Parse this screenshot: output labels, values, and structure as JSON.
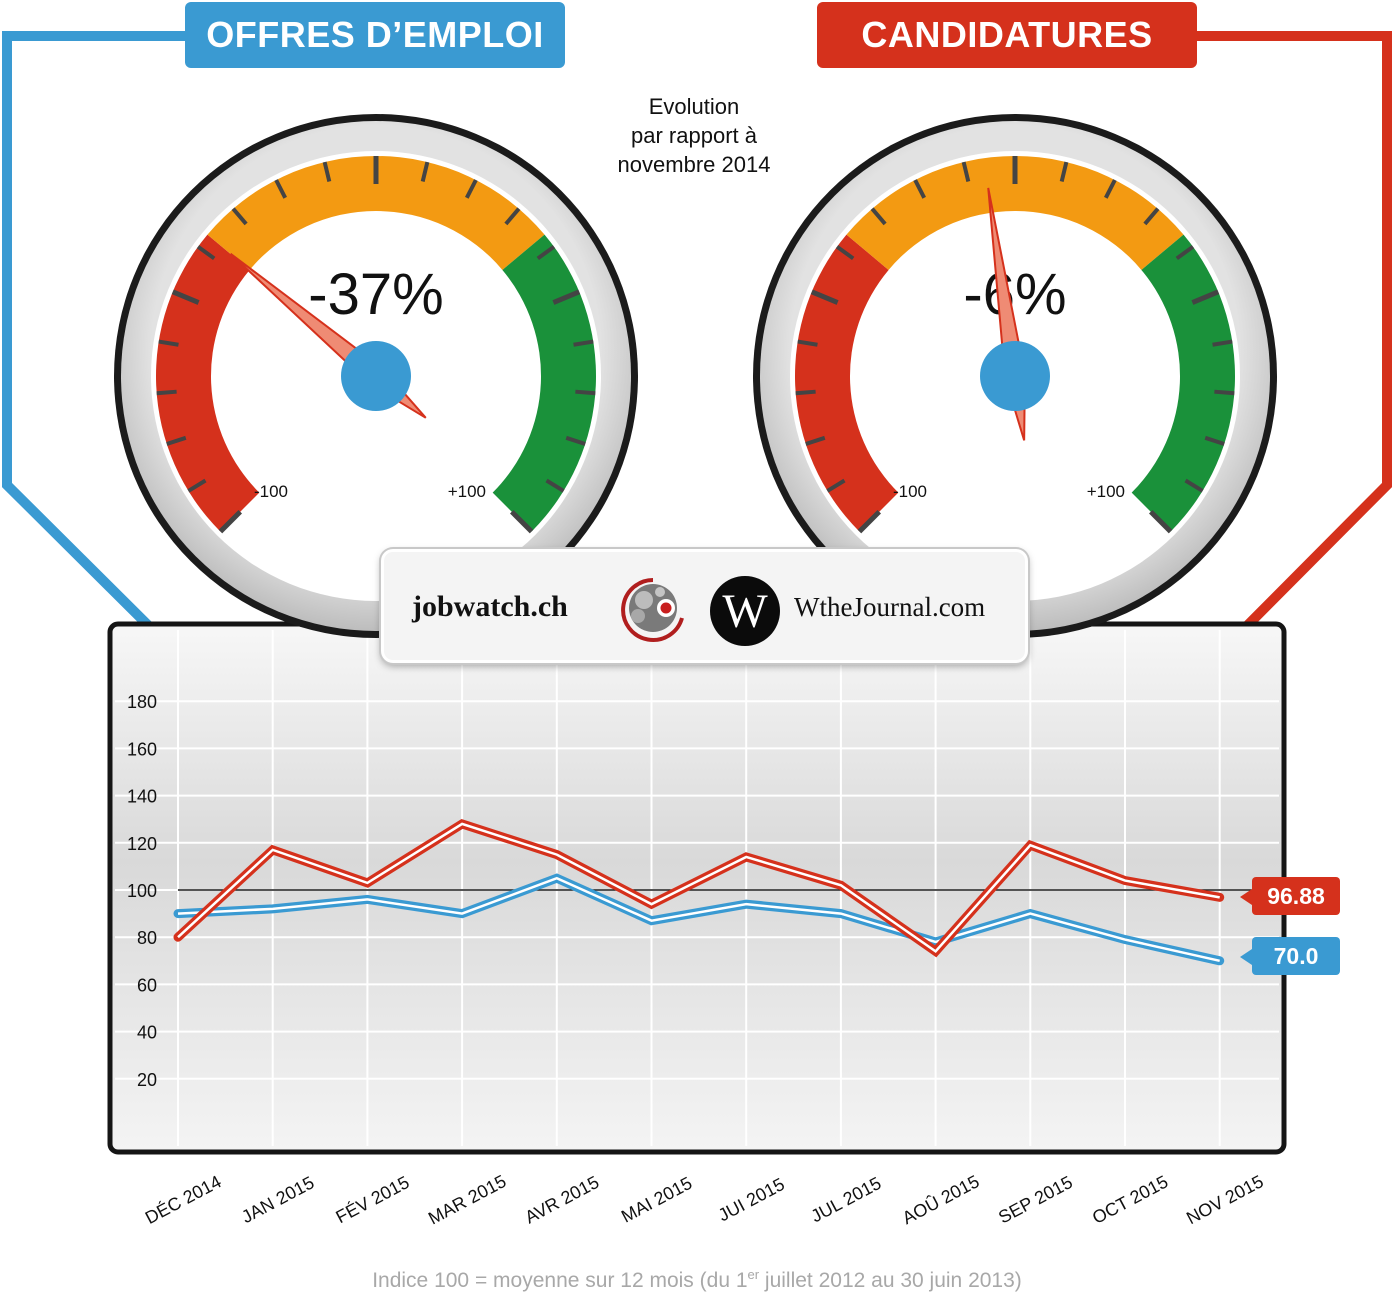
{
  "header": {
    "left_title": "OFFRES D’EMPLOI",
    "right_title": "CANDIDATURES"
  },
  "evolution_caption": {
    "line1": "Evolution",
    "line2": "par rapport à",
    "line3": "novembre 2014"
  },
  "gauges": [
    {
      "name": "offres",
      "value_label": "-37%",
      "value": -37,
      "min_label": "-100",
      "max_label": "+100"
    },
    {
      "name": "candidatures",
      "value_label": "-6%",
      "value": -6,
      "min_label": "-100",
      "max_label": "+100"
    }
  ],
  "logos": {
    "jobwatch": "jobwatch.ch",
    "w_letter": "W",
    "wthejournal": "WtheJournal.com"
  },
  "badges": {
    "candidatures_last": "96.88",
    "offres_last": "70.0"
  },
  "footnote": {
    "prefix": "Indice 100 = moyenne sur 12 mois (du 1",
    "sup": "er",
    "suffix": " juillet 2012 au 30 juin 2013)"
  },
  "colors": {
    "offres": "#3a9ad2",
    "candidatures": "#d5311c",
    "gauge_red": "#d5311c",
    "gauge_orange": "#f39a12",
    "gauge_green": "#1a913a"
  },
  "chart_data": {
    "type": "line",
    "categories": [
      "DÉC 2014",
      "JAN 2015",
      "FÉV 2015",
      "MAR 2015",
      "AVR 2015",
      "MAI 2015",
      "JUI 2015",
      "JUL 2015",
      "AOÛ 2015",
      "SEP 2015",
      "OCT 2015",
      "NOV 2015"
    ],
    "series": [
      {
        "key": "candidatures",
        "values": [
          80,
          117,
          103,
          128,
          115,
          94,
          114,
          102,
          74,
          119,
          104,
          96.88
        ]
      },
      {
        "key": "offres",
        "values": [
          90,
          92,
          96,
          90,
          105,
          87,
          94,
          90,
          78,
          90,
          79,
          70.0
        ]
      }
    ],
    "yticks": [
      20,
      40,
      60,
      80,
      100,
      120,
      140,
      160,
      180
    ],
    "ylim": [
      0,
      200
    ],
    "reference_line": 100,
    "grid": true
  }
}
